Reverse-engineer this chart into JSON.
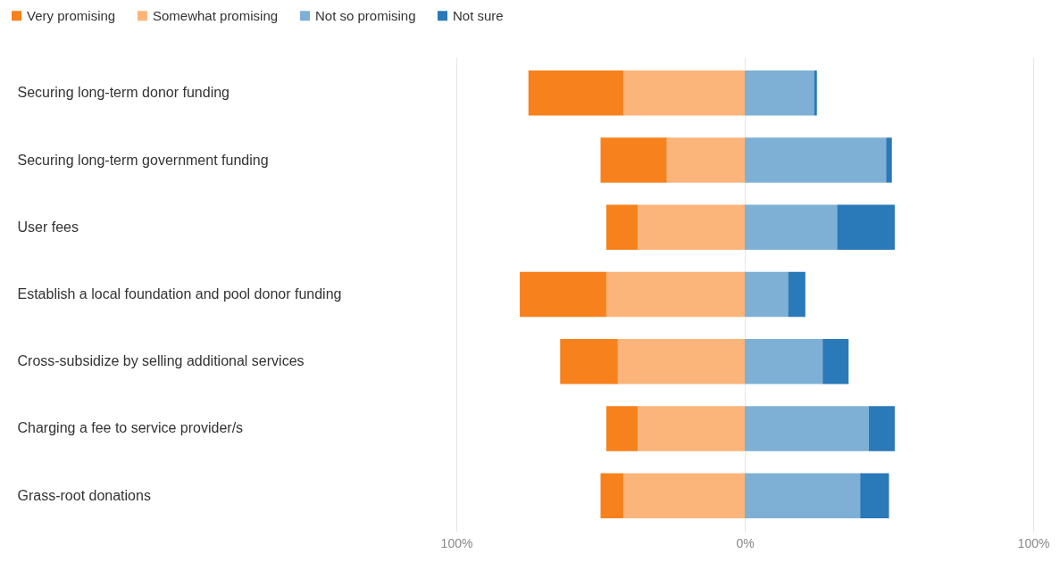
{
  "chart_data": {
    "type": "bar",
    "orientation": "horizontal",
    "stacked": true,
    "categories": [
      "Securing long-term donor funding",
      "Securing long-term government funding",
      "User fees",
      "Establish a local foundation and pool donor funding",
      "Cross-subsidize by selling additional services",
      "Charging a fee to service provider/s",
      "Grass-root donations"
    ],
    "series": [
      {
        "name": "Very promising",
        "color": "#f7811c",
        "values": [
          -33,
          -23,
          -11,
          -30,
          -20,
          -11,
          -8
        ]
      },
      {
        "name": "Somewhat promising",
        "color": "#fbb47a",
        "values": [
          -42,
          -27,
          -37,
          -48,
          -44,
          -37,
          -42
        ]
      },
      {
        "name": "Not so promising",
        "color": "#7eb0d5",
        "values": [
          24,
          49,
          32,
          15,
          27,
          43,
          40
        ]
      },
      {
        "name": "Not sure",
        "color": "#2a79b8",
        "values": [
          1,
          2,
          20,
          6,
          9,
          9,
          10
        ]
      }
    ],
    "xlim": [
      -100,
      100
    ],
    "xticks": [
      {
        "value": -100,
        "label": "100%"
      },
      {
        "value": 0,
        "label": "0%"
      },
      {
        "value": 100,
        "label": "100%"
      }
    ],
    "grid": "x",
    "legend": "top left"
  }
}
